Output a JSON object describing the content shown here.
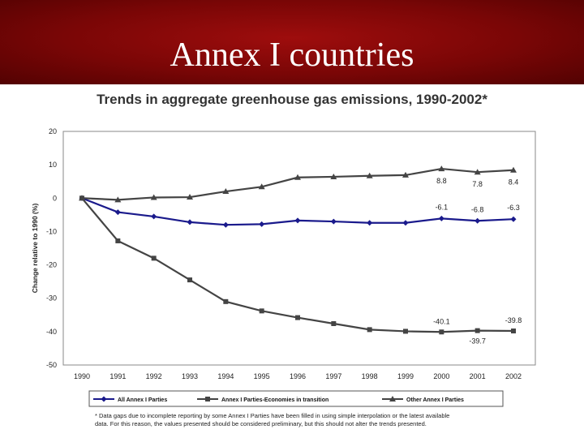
{
  "slide": {
    "title": "Annex I countries"
  },
  "chart_data": {
    "type": "line",
    "title": "Trends in aggregate greenhouse gas emissions, 1990-2002*",
    "xlabel": "",
    "ylabel": "Change relative to 1990 (%)",
    "categories": [
      "1990",
      "1991",
      "1992",
      "1993",
      "1994",
      "1995",
      "1996",
      "1997",
      "1998",
      "1999",
      "2000",
      "2001",
      "2002"
    ],
    "ylim": [
      -50,
      20
    ],
    "yticks": [
      20,
      10,
      0,
      -10,
      -20,
      -30,
      -40,
      -50
    ],
    "grid": false,
    "legend_position": "bottom",
    "series": [
      {
        "name": "All Annex I Parties",
        "color": "#1a1a8c",
        "marker": "diamond",
        "values": [
          0,
          -4.2,
          -5.5,
          -7.2,
          -8.0,
          -7.8,
          -6.7,
          -7.0,
          -7.4,
          -7.4,
          -6.1,
          -6.8,
          -6.3
        ]
      },
      {
        "name": "Annex I Parties-Economies in transition",
        "color": "#444444",
        "marker": "square",
        "values": [
          0,
          -12.8,
          -18.0,
          -24.5,
          -31.0,
          -33.8,
          -35.8,
          -37.6,
          -39.4,
          -39.9,
          -40.1,
          -39.7,
          -39.8
        ]
      },
      {
        "name": "Other Annex I Parties",
        "color": "#444444",
        "marker": "triangle",
        "values": [
          0,
          -0.5,
          0.2,
          0.3,
          2.0,
          3.4,
          6.2,
          6.4,
          6.7,
          6.9,
          8.8,
          7.8,
          8.4
        ]
      }
    ],
    "data_labels": [
      {
        "series": 2,
        "index": 10,
        "text": "8.8"
      },
      {
        "series": 2,
        "index": 11,
        "text": "7.8"
      },
      {
        "series": 2,
        "index": 12,
        "text": "8.4"
      },
      {
        "series": 0,
        "index": 10,
        "text": "-6.1"
      },
      {
        "series": 0,
        "index": 11,
        "text": "-6.8"
      },
      {
        "series": 0,
        "index": 12,
        "text": "-6.3"
      },
      {
        "series": 1,
        "index": 10,
        "text": "-40.1"
      },
      {
        "series": 1,
        "index": 11,
        "text": "-39.7"
      },
      {
        "series": 1,
        "index": 12,
        "text": "-39.8"
      }
    ],
    "footnote": [
      "* Data gaps due to incomplete reporting by some Annex I Parties have been filled in using simple interpolation or the latest available",
      "data. For this reason, the values presented should be considered preliminary, but this should not alter the trends presented."
    ]
  }
}
